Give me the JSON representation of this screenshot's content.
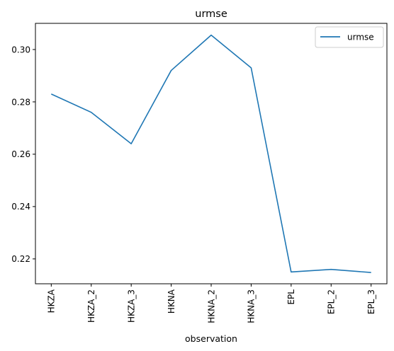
{
  "chart_data": {
    "type": "line",
    "title": "urmse",
    "xlabel": "observation",
    "ylabel": "",
    "categories": [
      "HKZA",
      "HKZA_2",
      "HKZA_3",
      "HKNA",
      "HKNA_2",
      "HKNA_3",
      "EPL",
      "EPL_2",
      "EPL_3"
    ],
    "series": [
      {
        "name": "urmse",
        "values": [
          0.283,
          0.276,
          0.264,
          0.292,
          0.3055,
          0.293,
          0.215,
          0.216,
          0.2148
        ],
        "color": "#1f77b4"
      }
    ],
    "ylim": [
      0.2105,
      0.31
    ],
    "yticks": [
      0.22,
      0.24,
      0.26,
      0.28,
      0.3
    ],
    "ytick_labels": [
      "0.22",
      "0.24",
      "0.26",
      "0.28",
      "0.30"
    ],
    "grid": false,
    "legend_position": "top-right"
  }
}
